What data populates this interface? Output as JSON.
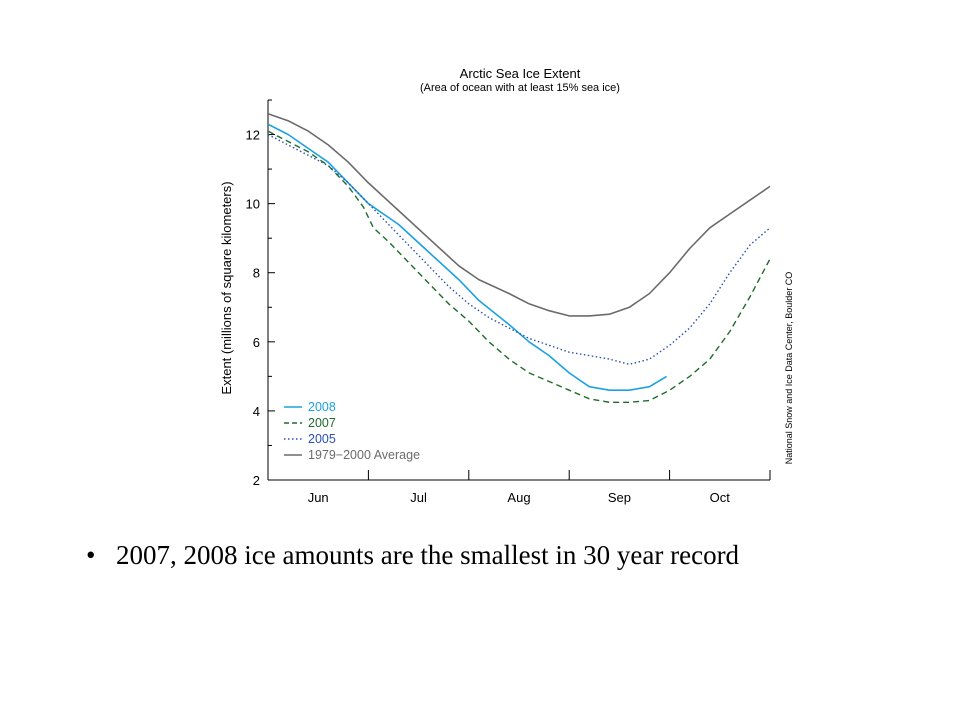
{
  "slide": {
    "bullet_symbol": "•",
    "bullet_text": "2007, 2008 ice amounts are the smallest in 30 year record"
  },
  "chart_data": {
    "type": "line",
    "title": "Arctic Sea Ice Extent",
    "subtitle": "(Area of ocean with at least 15% sea ice)",
    "xlabel": "",
    "ylabel": "Extent (millions of square kilometers)",
    "credit": "National Snow and Ice Data Center, Boulder CO",
    "ylim": [
      2,
      13
    ],
    "yticks": [
      2,
      4,
      6,
      8,
      10,
      12
    ],
    "xlim": [
      0,
      5
    ],
    "month_ticks": [
      "Jun",
      "Jul",
      "Aug",
      "Sep",
      "Oct"
    ],
    "grid": false,
    "legend_position": "bottom-left",
    "series": [
      {
        "name": "2008",
        "color": "#1ba1e2",
        "style": "solid",
        "points": [
          [
            0,
            12.3
          ],
          [
            0.2,
            12.0
          ],
          [
            0.4,
            11.6
          ],
          [
            0.6,
            11.2
          ],
          [
            0.8,
            10.6
          ],
          [
            1.0,
            10.0
          ],
          [
            1.3,
            9.4
          ],
          [
            1.6,
            8.6
          ],
          [
            1.9,
            7.8
          ],
          [
            2.1,
            7.2
          ],
          [
            2.4,
            6.5
          ],
          [
            2.6,
            6.0
          ],
          [
            2.8,
            5.6
          ],
          [
            3.0,
            5.1
          ],
          [
            3.2,
            4.7
          ],
          [
            3.4,
            4.6
          ],
          [
            3.6,
            4.6
          ],
          [
            3.8,
            4.7
          ],
          [
            3.97,
            5.0
          ]
        ]
      },
      {
        "name": "2007",
        "color": "#1f6b2c",
        "style": "dashed",
        "points": [
          [
            0,
            12.1
          ],
          [
            0.2,
            11.8
          ],
          [
            0.4,
            11.5
          ],
          [
            0.6,
            11.1
          ],
          [
            0.8,
            10.5
          ],
          [
            0.95,
            9.9
          ],
          [
            1.05,
            9.3
          ],
          [
            1.2,
            8.9
          ],
          [
            1.4,
            8.3
          ],
          [
            1.6,
            7.7
          ],
          [
            1.8,
            7.1
          ],
          [
            2.0,
            6.6
          ],
          [
            2.2,
            6.0
          ],
          [
            2.4,
            5.5
          ],
          [
            2.6,
            5.1
          ],
          [
            2.8,
            4.85
          ],
          [
            3.0,
            4.6
          ],
          [
            3.2,
            4.35
          ],
          [
            3.4,
            4.25
          ],
          [
            3.6,
            4.25
          ],
          [
            3.8,
            4.3
          ],
          [
            4.0,
            4.6
          ],
          [
            4.2,
            5.0
          ],
          [
            4.4,
            5.5
          ],
          [
            4.6,
            6.3
          ],
          [
            4.8,
            7.3
          ],
          [
            5.0,
            8.4
          ]
        ]
      },
      {
        "name": "2005",
        "color": "#2b4fb5",
        "style": "dotted",
        "points": [
          [
            0,
            12.0
          ],
          [
            0.2,
            11.7
          ],
          [
            0.4,
            11.4
          ],
          [
            0.6,
            11.1
          ],
          [
            0.8,
            10.6
          ],
          [
            1.0,
            10.0
          ],
          [
            1.2,
            9.4
          ],
          [
            1.4,
            8.8
          ],
          [
            1.6,
            8.2
          ],
          [
            1.8,
            7.6
          ],
          [
            2.0,
            7.1
          ],
          [
            2.2,
            6.7
          ],
          [
            2.4,
            6.4
          ],
          [
            2.6,
            6.1
          ],
          [
            2.8,
            5.9
          ],
          [
            3.0,
            5.7
          ],
          [
            3.2,
            5.6
          ],
          [
            3.4,
            5.5
          ],
          [
            3.6,
            5.35
          ],
          [
            3.8,
            5.5
          ],
          [
            4.0,
            5.9
          ],
          [
            4.2,
            6.4
          ],
          [
            4.4,
            7.1
          ],
          [
            4.6,
            8.0
          ],
          [
            4.8,
            8.8
          ],
          [
            5.0,
            9.3
          ]
        ]
      },
      {
        "name": "1979−2000 Average",
        "color": "#6b6b6b",
        "style": "solid",
        "points": [
          [
            0,
            12.6
          ],
          [
            0.2,
            12.4
          ],
          [
            0.4,
            12.1
          ],
          [
            0.6,
            11.7
          ],
          [
            0.8,
            11.2
          ],
          [
            1.0,
            10.6
          ],
          [
            1.3,
            9.8
          ],
          [
            1.6,
            9.0
          ],
          [
            1.9,
            8.2
          ],
          [
            2.1,
            7.8
          ],
          [
            2.4,
            7.4
          ],
          [
            2.6,
            7.1
          ],
          [
            2.8,
            6.9
          ],
          [
            3.0,
            6.75
          ],
          [
            3.2,
            6.75
          ],
          [
            3.4,
            6.8
          ],
          [
            3.6,
            7.0
          ],
          [
            3.8,
            7.4
          ],
          [
            4.0,
            8.0
          ],
          [
            4.2,
            8.7
          ],
          [
            4.4,
            9.3
          ],
          [
            4.6,
            9.7
          ],
          [
            4.8,
            10.1
          ],
          [
            5.0,
            10.5
          ]
        ]
      }
    ]
  }
}
